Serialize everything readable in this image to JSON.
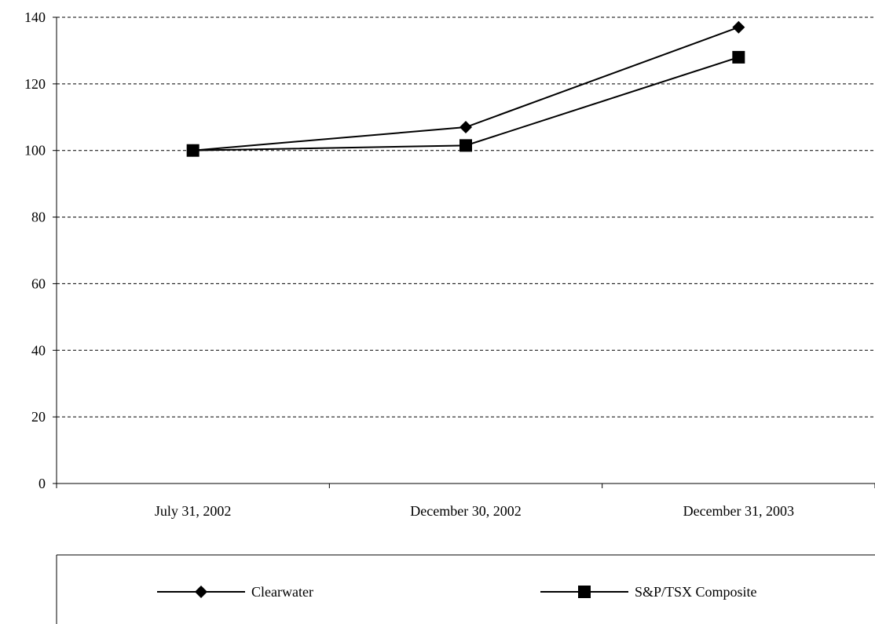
{
  "chart_data": {
    "type": "line",
    "categories": [
      "July 31, 2002",
      "December 30, 2002",
      "December 31, 2003"
    ],
    "series": [
      {
        "name": "Clearwater",
        "values": [
          100,
          107,
          137
        ],
        "marker": "diamond"
      },
      {
        "name": "S&P/TSX Composite",
        "values": [
          100,
          101.5,
          128
        ],
        "marker": "square"
      }
    ],
    "ylim": [
      0,
      140
    ],
    "yticks": [
      0,
      20,
      40,
      60,
      80,
      100,
      120,
      140
    ],
    "grid": true,
    "legend_position": "bottom",
    "colors": {
      "line": "#000000",
      "grid": "#000000",
      "background": "#ffffff"
    }
  }
}
